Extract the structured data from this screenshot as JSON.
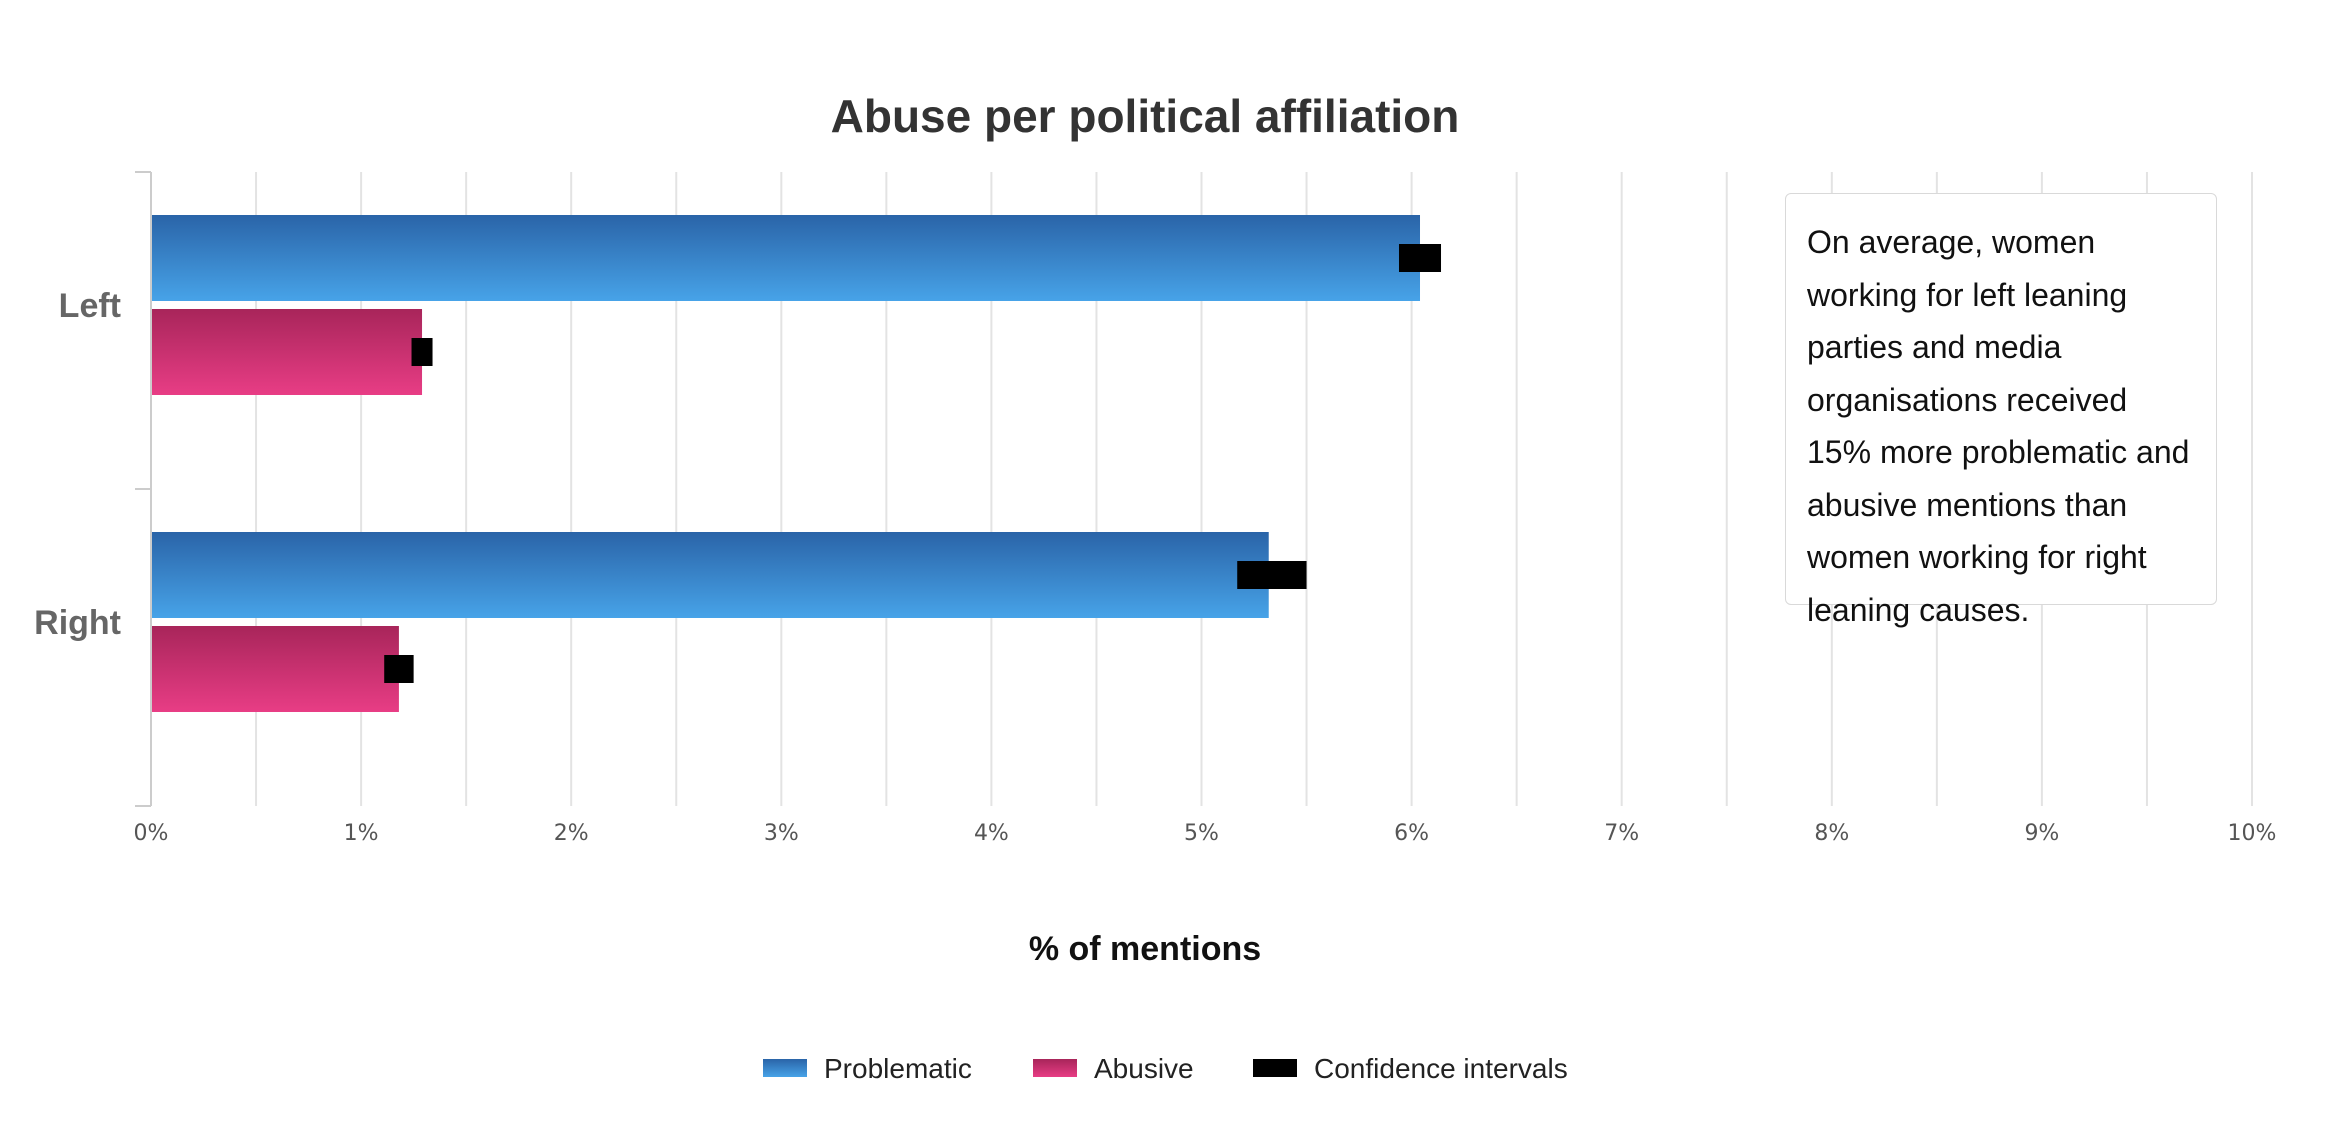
{
  "chart_data": {
    "type": "bar",
    "orientation": "horizontal",
    "title": "Abuse per political affiliation",
    "xlabel": "% of mentions",
    "ylabel": "",
    "categories": [
      "Left",
      "Right"
    ],
    "series": [
      {
        "name": "Problematic",
        "values": [
          6.04,
          5.32
        ],
        "color_top": "#2a64a8",
        "color_bottom": "#47a3e8"
      },
      {
        "name": "Abusive",
        "values": [
          1.29,
          1.18
        ],
        "color_top": "#a8255a",
        "color_bottom": "#e83d85"
      }
    ],
    "confidence_intervals": {
      "name": "Confidence intervals",
      "color": "#000000",
      "Problematic": [
        [
          5.94,
          6.14
        ],
        [
          5.17,
          5.5
        ]
      ],
      "Abusive": [
        [
          1.24,
          1.34
        ],
        [
          1.11,
          1.25
        ]
      ]
    },
    "xlim": [
      0,
      10
    ],
    "x_ticks": [
      "0%",
      "1%",
      "2%",
      "3%",
      "4%",
      "5%",
      "6%",
      "7%",
      "8%",
      "9%",
      "10%"
    ],
    "grid": true,
    "legend_position": "bottom-center",
    "annotation": "On average, women working for left leaning parties and media organisations received 15% more problematic and abusive mentions than women working for right leaning causes."
  }
}
